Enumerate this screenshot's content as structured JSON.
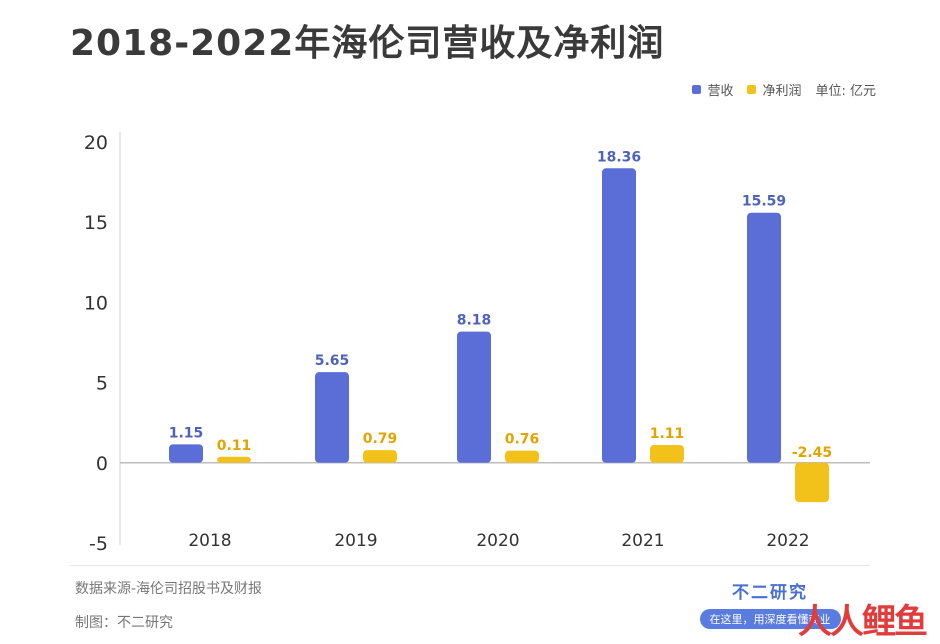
{
  "title": "2018-2022年海伦司营收及净利润",
  "legend": {
    "revenue_label": "营收",
    "profit_label": "净利润",
    "unit": "单位: 亿元"
  },
  "colors": {
    "revenue": "#5b6ed8",
    "profit": "#f3c21a",
    "revenue_label": "#4f63b8",
    "profit_label": "#e2a400",
    "axis_text": "#333333"
  },
  "chart_data": {
    "type": "bar",
    "categories": [
      "2018",
      "2019",
      "2020",
      "2021",
      "2022"
    ],
    "series": [
      {
        "name": "营收",
        "values": [
          1.15,
          5.65,
          8.18,
          18.36,
          15.59
        ]
      },
      {
        "name": "净利润",
        "values": [
          0.11,
          0.79,
          0.76,
          1.11,
          -2.45
        ]
      }
    ],
    "value_labels": [
      [
        "1.15",
        "5.65",
        "8.18",
        "18.36",
        "15.59"
      ],
      [
        "0.11",
        "0.79",
        "0.76",
        "1.11",
        "-2.45"
      ]
    ],
    "ylim": [
      -5,
      20
    ],
    "yticks": [
      "20",
      "15",
      "10",
      "5",
      "0",
      "-5"
    ],
    "ytick_values": [
      20,
      15,
      10,
      5,
      0,
      -5
    ],
    "legend_position": "top-right",
    "grid": false
  },
  "footer": {
    "source": "数据来源-海伦司招股书及财报",
    "credit": "制图：不二研究"
  },
  "brand": {
    "name": "不二研究",
    "slogan": "在这里，用深度看懂商业"
  },
  "watermark": "人人鲤鱼"
}
